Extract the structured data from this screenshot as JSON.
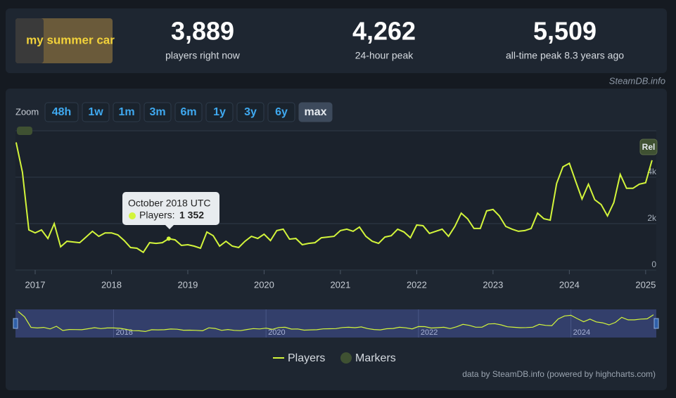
{
  "header": {
    "game_logo": "my summer car",
    "stats": [
      {
        "value": "3,889",
        "label": "players right now"
      },
      {
        "value": "4,262",
        "label": "24-hour peak"
      },
      {
        "value": "5,509",
        "label": "all-time peak 8.3 years ago"
      }
    ],
    "source": "SteamDB.info"
  },
  "zoom": {
    "label": "Zoom",
    "buttons": [
      "48h",
      "1w",
      "1m",
      "3m",
      "6m",
      "1y",
      "3y",
      "6y",
      "max"
    ],
    "active": "max"
  },
  "chart_data": {
    "type": "line",
    "x": [
      "2016-10",
      "2016-11",
      "2016-12",
      "2017-01",
      "2017-02",
      "2017-03",
      "2017-04",
      "2017-05",
      "2017-06",
      "2017-07",
      "2017-08",
      "2017-09",
      "2017-10",
      "2017-11",
      "2017-12",
      "2018-01",
      "2018-02",
      "2018-03",
      "2018-04",
      "2018-05",
      "2018-06",
      "2018-07",
      "2018-08",
      "2018-09",
      "2018-10",
      "2018-11",
      "2018-12",
      "2019-01",
      "2019-02",
      "2019-03",
      "2019-04",
      "2019-05",
      "2019-06",
      "2019-07",
      "2019-08",
      "2019-09",
      "2019-10",
      "2019-11",
      "2019-12",
      "2020-01",
      "2020-02",
      "2020-03",
      "2020-04",
      "2020-05",
      "2020-06",
      "2020-07",
      "2020-08",
      "2020-09",
      "2020-10",
      "2020-11",
      "2020-12",
      "2021-01",
      "2021-02",
      "2021-03",
      "2021-04",
      "2021-05",
      "2021-06",
      "2021-07",
      "2021-08",
      "2021-09",
      "2021-10",
      "2021-11",
      "2021-12",
      "2022-01",
      "2022-02",
      "2022-03",
      "2022-04",
      "2022-05",
      "2022-06",
      "2022-07",
      "2022-08",
      "2022-09",
      "2022-10",
      "2022-11",
      "2022-12",
      "2023-01",
      "2023-02",
      "2023-03",
      "2023-04",
      "2023-05",
      "2023-06",
      "2023-07",
      "2023-08",
      "2023-09",
      "2023-10",
      "2023-11",
      "2023-12",
      "2024-01",
      "2024-02",
      "2024-03",
      "2024-04",
      "2024-05",
      "2024-06",
      "2024-07",
      "2024-08",
      "2024-09",
      "2024-10",
      "2024-11",
      "2024-12",
      "2025-01",
      "2025-02"
    ],
    "series": [
      {
        "name": "Players",
        "color": "#d3f53b",
        "values": [
          5500,
          4212,
          1727,
          1600,
          1727,
          1360,
          2000,
          1000,
          1240,
          1210,
          1180,
          1420,
          1670,
          1450,
          1600,
          1600,
          1515,
          1270,
          970,
          940,
          760,
          1180,
          1150,
          1180,
          1352,
          1300,
          1060,
          1090,
          1030,
          940,
          1640,
          1480,
          1030,
          1240,
          1030,
          970,
          1240,
          1450,
          1360,
          1545,
          1270,
          1700,
          1760,
          1330,
          1360,
          1090,
          1150,
          1180,
          1390,
          1420,
          1450,
          1700,
          1760,
          1670,
          1850,
          1450,
          1240,
          1150,
          1420,
          1480,
          1760,
          1640,
          1390,
          1940,
          1910,
          1580,
          1670,
          1760,
          1450,
          1880,
          2450,
          2210,
          1790,
          1790,
          2550,
          2610,
          2330,
          1880,
          1760,
          1670,
          1700,
          1790,
          2450,
          2210,
          2150,
          3730,
          4450,
          4600,
          3820,
          3060,
          3700,
          3030,
          2820,
          2330,
          2910,
          4120,
          3520,
          3520,
          3700,
          3760,
          4730
        ]
      }
    ],
    "ylim": [
      0,
      6000
    ],
    "yticks": [
      0,
      {
        "value": 2000,
        "label": "2k"
      },
      {
        "value": 4000,
        "label": "4k"
      }
    ],
    "xticks": [
      {
        "value": "2017-01",
        "label": "2017"
      },
      {
        "value": "2018-01",
        "label": "2018"
      },
      {
        "value": "2019-01",
        "label": "2019"
      },
      {
        "value": "2020-01",
        "label": "2020"
      },
      {
        "value": "2021-01",
        "label": "2021"
      },
      {
        "value": "2022-01",
        "label": "2022"
      },
      {
        "value": "2023-01",
        "label": "2023"
      },
      {
        "value": "2024-01",
        "label": "2024"
      },
      {
        "value": "2025-01",
        "label": "2025"
      }
    ],
    "grid": true,
    "legend": {
      "position": "bottom",
      "markers": {
        "name": "Markers",
        "color": "#3f5132"
      }
    },
    "markers": [
      {
        "label": "Rel"
      }
    ],
    "tooltip": {
      "title": "October 2018 UTC",
      "label": "Players:",
      "value": "1 352",
      "index": 24
    },
    "credits": "data by SteamDB.info (powered by highcharts.com)"
  }
}
